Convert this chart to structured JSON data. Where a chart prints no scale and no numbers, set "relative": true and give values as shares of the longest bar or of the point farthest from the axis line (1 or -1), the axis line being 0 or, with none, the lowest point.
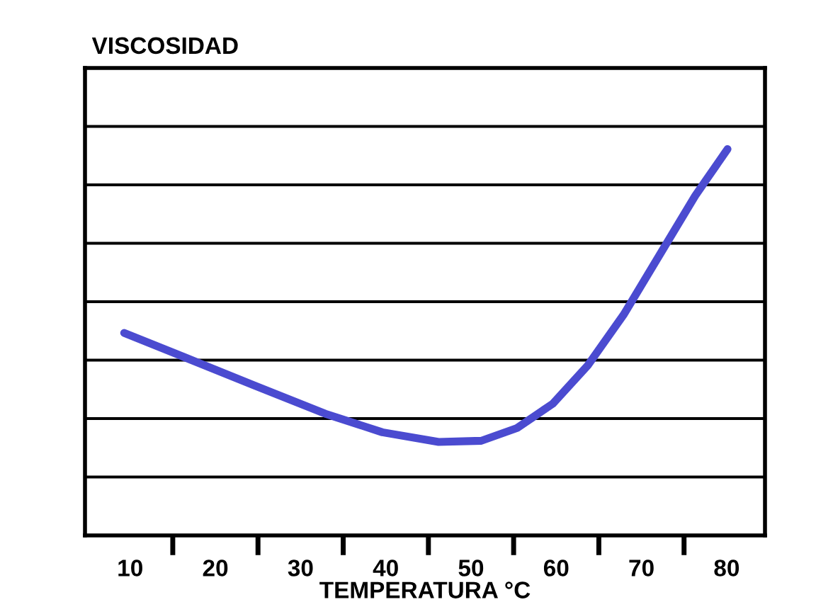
{
  "chart_data": {
    "type": "line",
    "ylabel": "VISCOSIDAD",
    "xlabel": "TEMPERATURA °C",
    "relative": true,
    "grid": "y",
    "x": [
      9.3,
      16.3,
      24.6,
      32.9,
      39.6,
      46.2,
      51.2,
      55.4,
      59.6,
      63.7,
      67.9,
      72.1,
      76.3,
      80.1
    ],
    "series": [
      {
        "color": "#4b4bd0",
        "values": [
          0.524,
          0.462,
          0.388,
          0.315,
          0.267,
          0.242,
          0.245,
          0.278,
          0.341,
          0.44,
          0.571,
          0.725,
          0.879,
          1.0
        ]
      }
    ],
    "xlim": [
      4.7,
      84.5
    ],
    "xticks": [
      10,
      {
        "value": 15,
        "label": null
      },
      20,
      {
        "value": 25,
        "label": null
      },
      30,
      {
        "value": 35,
        "label": null
      },
      40,
      {
        "value": 45,
        "label": null
      },
      50,
      {
        "value": 55,
        "label": null
      },
      60,
      {
        "value": 65,
        "label": null
      },
      70,
      {
        "value": 75,
        "label": null
      },
      80
    ],
    "line_style": "solid",
    "marker": "none",
    "legend": false
  }
}
